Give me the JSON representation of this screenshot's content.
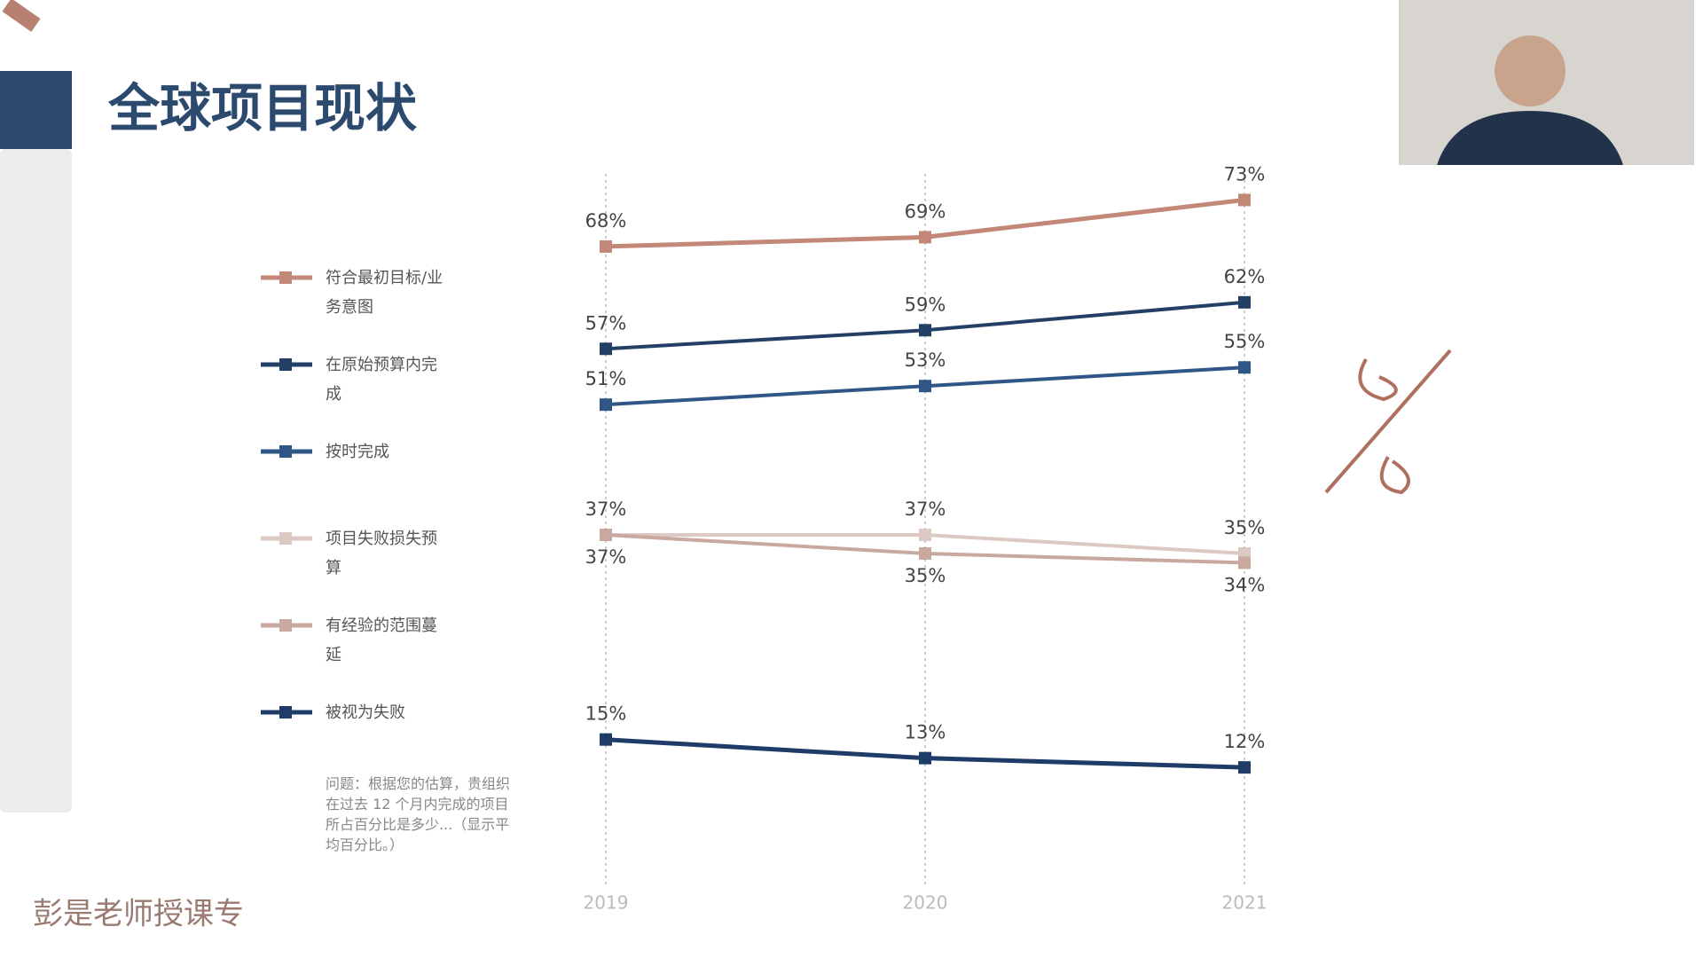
{
  "chart_data": {
    "type": "line",
    "title": "全球项目现状",
    "categories": [
      "2019",
      "2020",
      "2021"
    ],
    "ylim": [
      0,
      76
    ],
    "series": [
      {
        "name": "符合最初目标/业务意图",
        "color": "#c38878",
        "values": [
          68,
          69,
          73
        ],
        "value_labels": [
          "68%",
          "69%",
          "73%"
        ]
      },
      {
        "name": "在原始预算内完成",
        "color": "#243f66",
        "values": [
          57,
          59,
          62
        ],
        "value_labels": [
          "57%",
          "59%",
          "62%"
        ]
      },
      {
        "name": "按时完成",
        "color": "#2f5686",
        "values": [
          51,
          53,
          55
        ],
        "value_labels": [
          "51%",
          "53%",
          "55%"
        ]
      },
      {
        "name": "项目失败损失预算",
        "color": "#dcc9c3",
        "values": [
          37,
          37,
          35
        ],
        "value_labels": [
          "37%",
          "37%",
          "35%"
        ]
      },
      {
        "name": "有经验的范围蔓延",
        "color": "#c9a8a0",
        "values": [
          37,
          35,
          34
        ],
        "value_labels": [
          "37%",
          "35%",
          "34%"
        ]
      },
      {
        "name": "被视为失败",
        "color": "#1f3c68",
        "values": [
          15,
          13,
          12
        ],
        "value_labels": [
          "15%",
          "13%",
          "12%"
        ]
      }
    ],
    "footnote": "问题：根据您的估算，贵组织在过去 12 个月内完成的项目所占百分比是多少...（显示平均百分比。）",
    "watermark": "彭是老师授课专"
  }
}
